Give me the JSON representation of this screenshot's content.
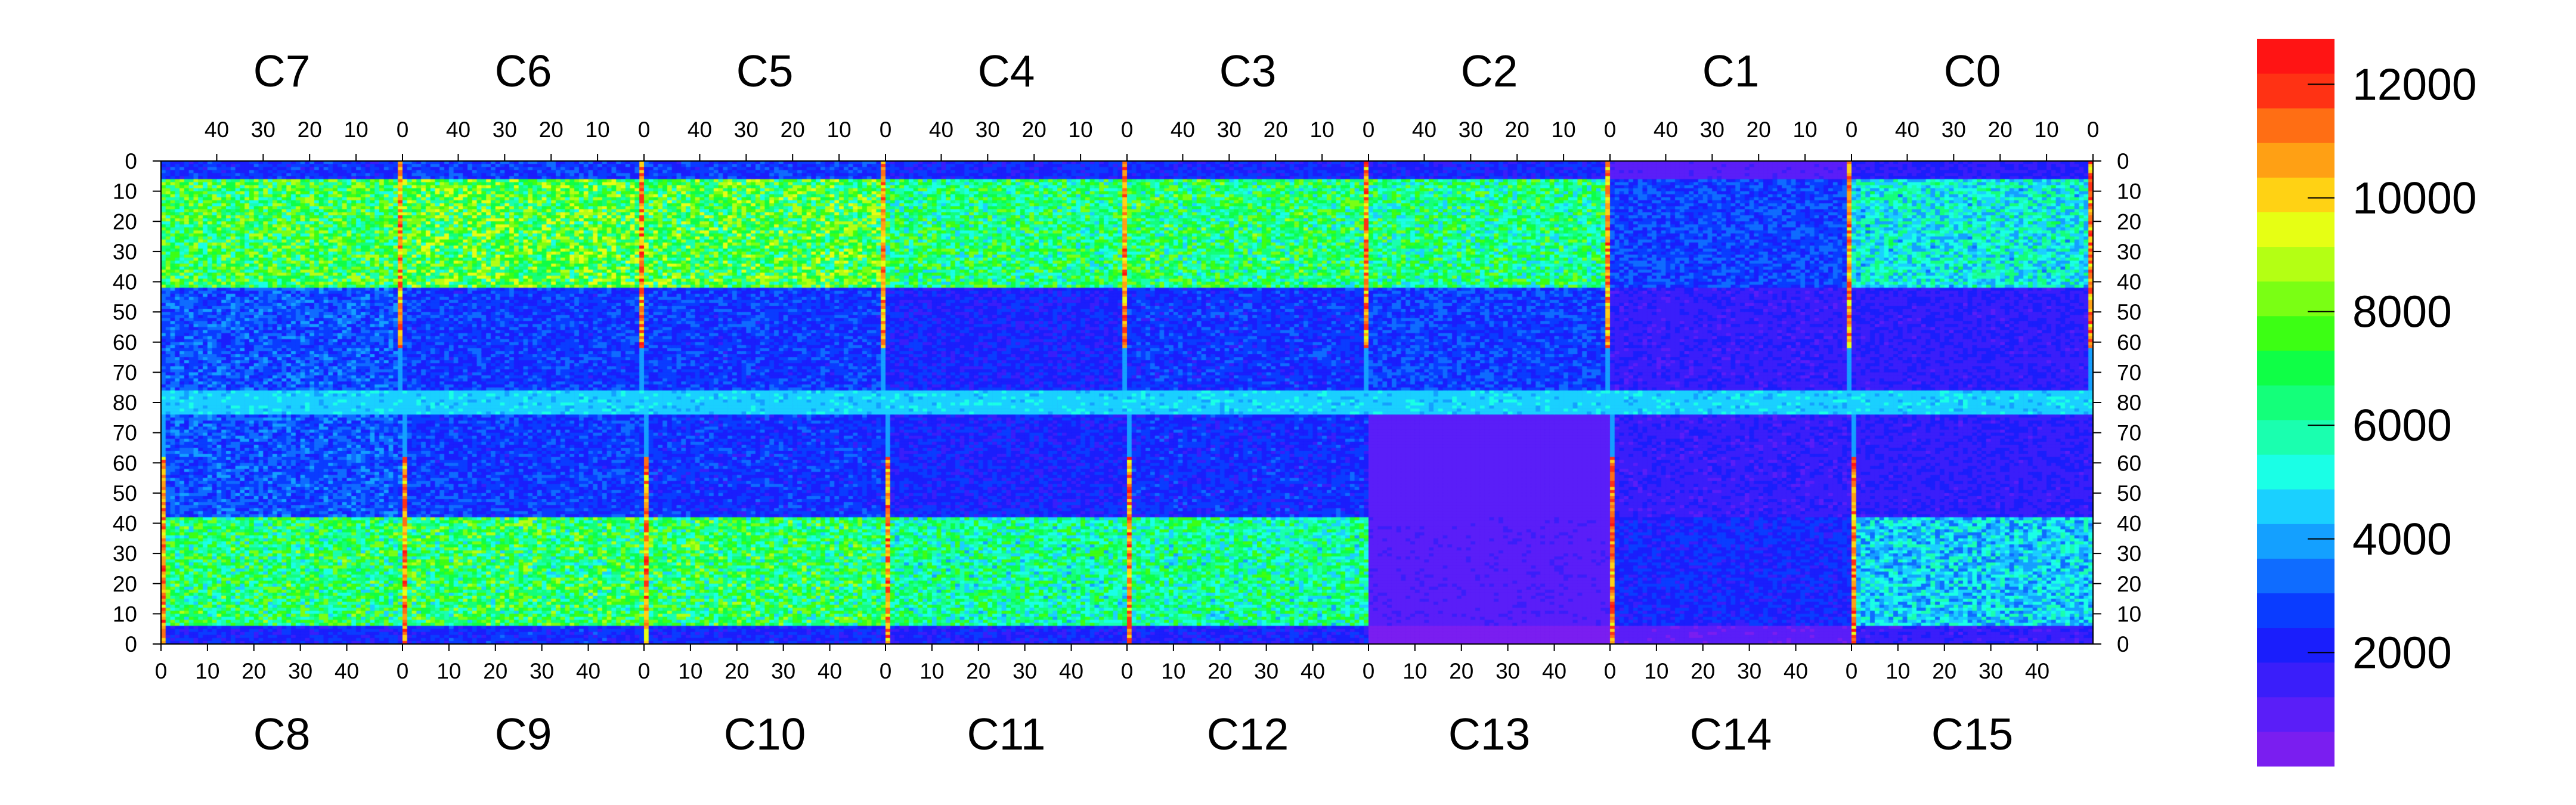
{
  "chart_data": {
    "type": "heatmap",
    "title": "",
    "xlabel": "",
    "ylabel": "",
    "top_chips": [
      "C7",
      "C6",
      "C5",
      "C4",
      "C3",
      "C2",
      "C1",
      "C0"
    ],
    "bottom_chips": [
      "C8",
      "C9",
      "C10",
      "C11",
      "C12",
      "C13",
      "C14",
      "C15"
    ],
    "columns_per_chip": 52,
    "rows_per_half": 80,
    "x_ticks": [
      0,
      10,
      20,
      30,
      40
    ],
    "top_x_tick_labels": [
      "40",
      "30",
      "20",
      "10",
      "0"
    ],
    "bottom_x_tick_labels": [
      "0",
      "10",
      "20",
      "30",
      "40"
    ],
    "y_tick_labels": [
      "0",
      "10",
      "20",
      "30",
      "40",
      "50",
      "60",
      "70",
      "80",
      "70",
      "60",
      "50",
      "40",
      "30",
      "20",
      "10",
      "0"
    ],
    "zlim": [
      0,
      12800
    ],
    "colorbar_ticks": [
      2000,
      4000,
      6000,
      8000,
      10000,
      12000
    ],
    "colorbar_labels": [
      "2000",
      "4000",
      "6000",
      "8000",
      "10000",
      "12000"
    ],
    "colormap": [
      "#7a1ef0",
      "#5a1ef8",
      "#3a1efa",
      "#1a1efc",
      "#0a3cff",
      "#0f6cff",
      "#14a0ff",
      "#1ad0ff",
      "#1affe6",
      "#1affaf",
      "#14ff7a",
      "#0fff46",
      "#3cff14",
      "#7aff14",
      "#b4ff14",
      "#e6ff14",
      "#ffd214",
      "#ffa014",
      "#ff6e14",
      "#ff3214",
      "#ff1414"
    ],
    "chip_stats": [
      {
        "chip": "C7",
        "mean_upper": 7000,
        "mean_lower": 3000
      },
      {
        "chip": "C6",
        "mean_upper": 7500,
        "mean_lower": 2600
      },
      {
        "chip": "C5",
        "mean_upper": 7300,
        "mean_lower": 2600
      },
      {
        "chip": "C4",
        "mean_upper": 6500,
        "mean_lower": 2200
      },
      {
        "chip": "C3",
        "mean_upper": 6600,
        "mean_lower": 2500
      },
      {
        "chip": "C2",
        "mean_upper": 6300,
        "mean_lower": 2700
      },
      {
        "chip": "C1",
        "mean_upper": 2800,
        "mean_lower": 1600
      },
      {
        "chip": "C0",
        "mean_upper": 5200,
        "mean_lower": 1700
      },
      {
        "chip": "C8",
        "mean_upper": 6600,
        "mean_lower": 3000
      },
      {
        "chip": "C9",
        "mean_upper": 6800,
        "mean_lower": 2600
      },
      {
        "chip": "C10",
        "mean_upper": 6700,
        "mean_lower": 2500
      },
      {
        "chip": "C11",
        "mean_upper": 6000,
        "mean_lower": 2200
      },
      {
        "chip": "C12",
        "mean_upper": 6000,
        "mean_lower": 2400
      },
      {
        "chip": "C13",
        "mean_upper": 1000,
        "mean_lower": 900
      },
      {
        "chip": "C14",
        "mean_upper": 2300,
        "mean_lower": 1600
      },
      {
        "chip": "C15",
        "mean_upper": 4600,
        "mean_lower": 1700
      }
    ],
    "hot_column_value": 11800,
    "dead_chip": "C13"
  }
}
